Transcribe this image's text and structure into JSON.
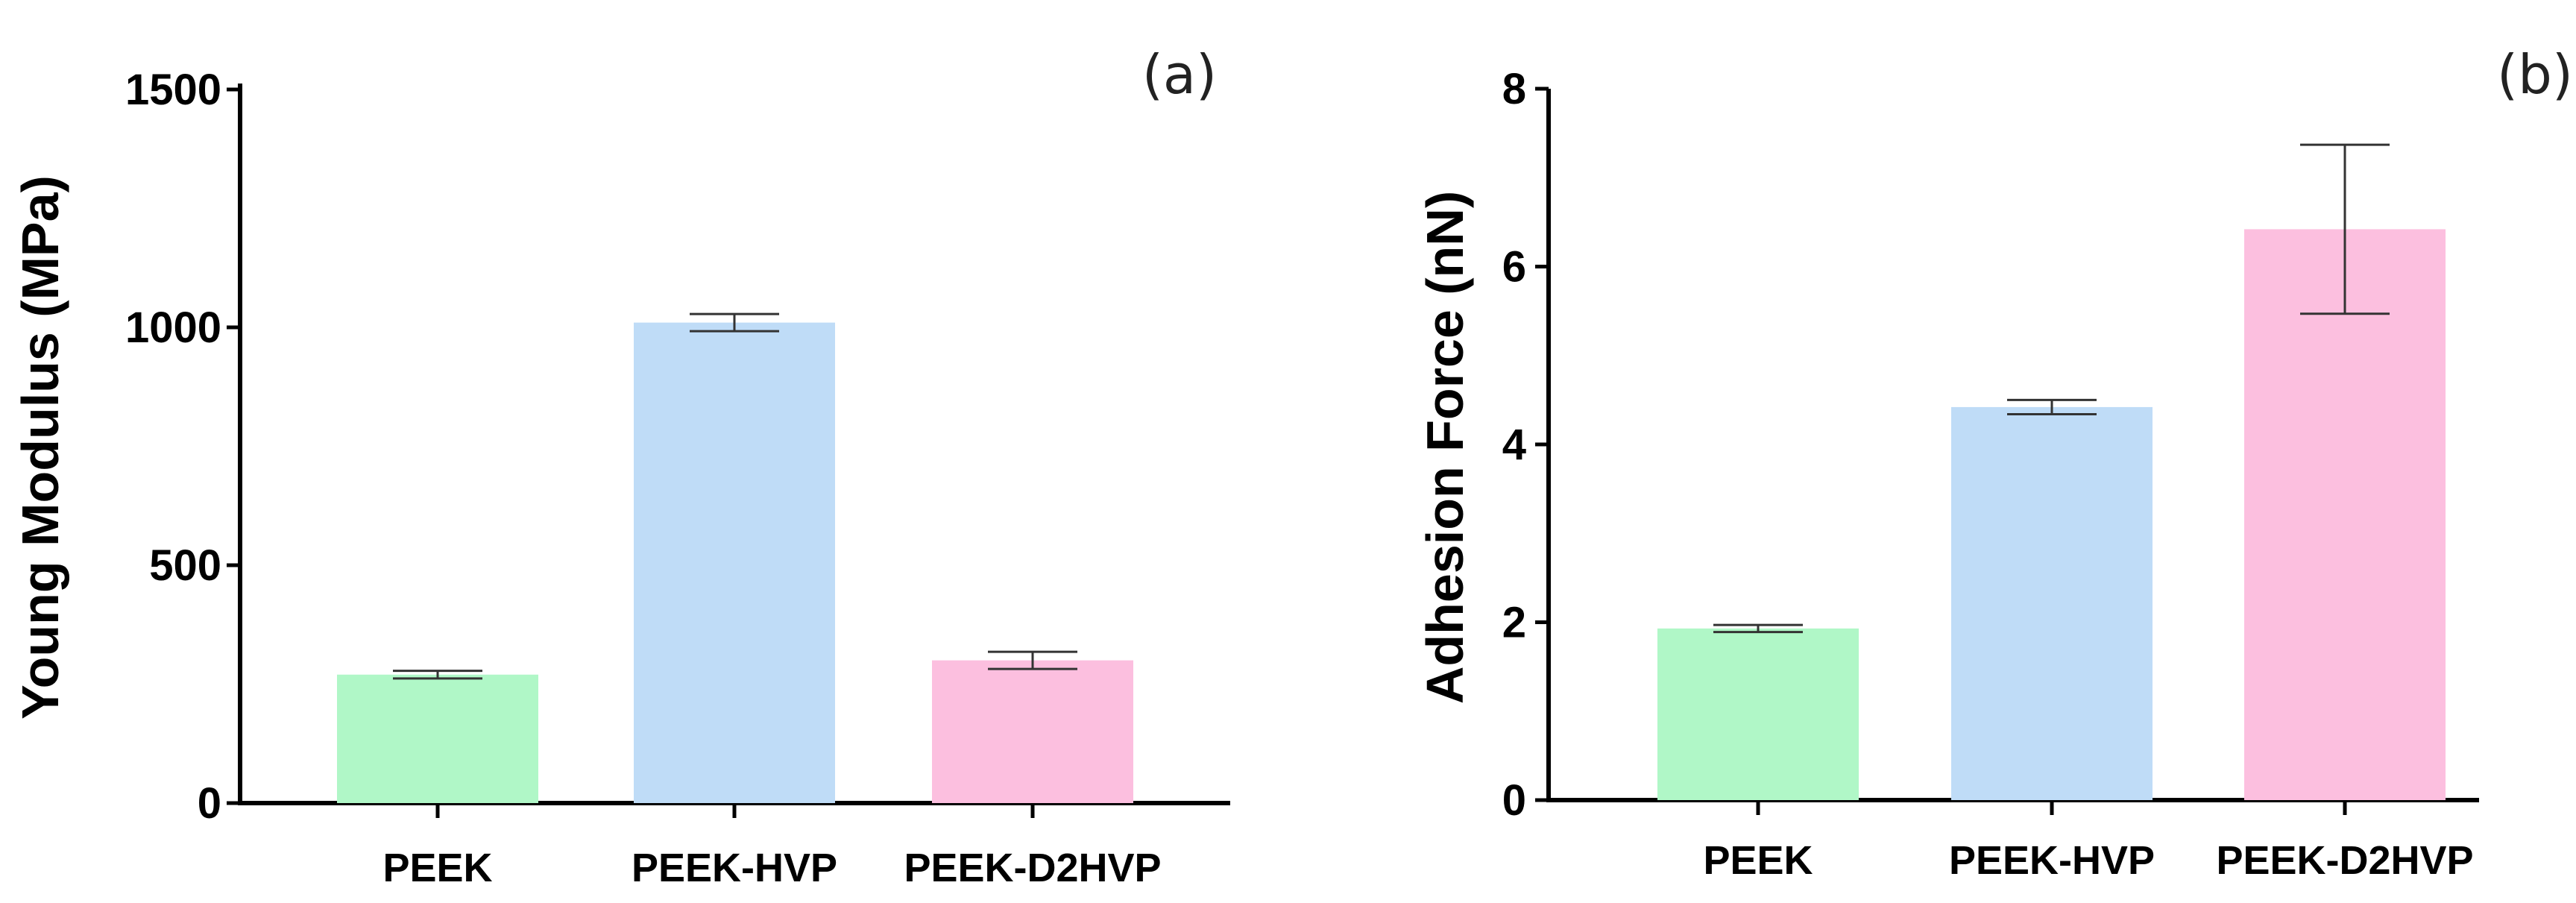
{
  "chart_data": [
    {
      "type": "bar",
      "panel_label": "(a)",
      "categories": [
        "PEEK",
        "PEEK-HVP",
        "PEEK-D2HVP"
      ],
      "values": [
        270,
        1010,
        300
      ],
      "errors": [
        8,
        18,
        18
      ],
      "colors": [
        "#b0f7c7",
        "#bfdcf7",
        "#fcbfdf"
      ],
      "ylabel": "Young Modulus  (MPa)",
      "ylim": [
        0,
        1500
      ],
      "yticks": [
        0,
        500,
        1000,
        1500
      ],
      "ytick_labels": [
        "0",
        "500",
        "1000",
        "1500"
      ],
      "grid": false
    },
    {
      "type": "bar",
      "panel_label": "(b)",
      "categories": [
        "PEEK",
        "PEEK-HVP",
        "PEEK-D2HVP"
      ],
      "values": [
        1.93,
        4.42,
        6.42
      ],
      "errors": [
        0.04,
        0.08,
        0.95
      ],
      "colors": [
        "#b0f7c7",
        "#bfdcf7",
        "#fcbfdf"
      ],
      "ylabel": "Adhesion Force  (nN)",
      "ylim": [
        0,
        8
      ],
      "yticks": [
        0,
        2,
        4,
        6,
        8
      ],
      "ytick_labels": [
        "0",
        "2",
        "4",
        "6",
        "8"
      ],
      "grid": false
    }
  ]
}
